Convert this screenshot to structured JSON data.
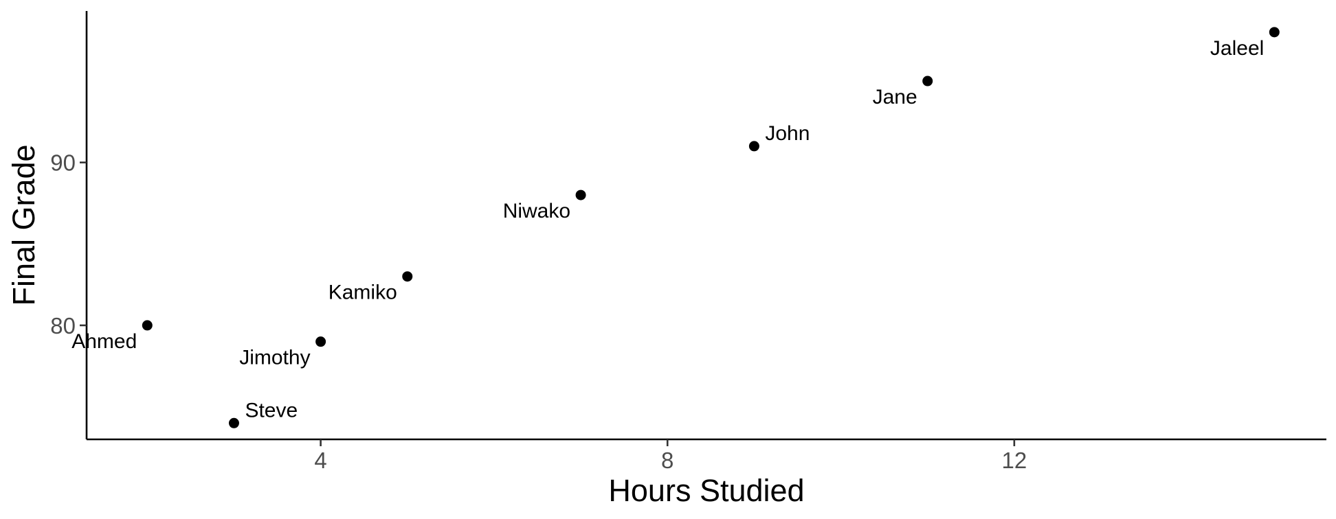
{
  "chart_data": {
    "type": "scatter",
    "title": "",
    "xlabel": "Hours Studied",
    "ylabel": "Final Grade",
    "xlim": [
      1.3,
      15.6
    ],
    "ylim": [
      73.0,
      99.3
    ],
    "xticks": [
      4,
      8,
      12
    ],
    "yticks": [
      80,
      90
    ],
    "grid": false,
    "legend": "none",
    "colors": {
      "point": "#000000",
      "axis": "#000000",
      "tick_label": "#4d4d4d"
    },
    "points": [
      {
        "label": "Ahmed",
        "x": 2,
        "y": 80,
        "label_side": "below-left"
      },
      {
        "label": "Steve",
        "x": 3,
        "y": 74,
        "label_side": "above-right"
      },
      {
        "label": "Jimothy",
        "x": 4,
        "y": 79,
        "label_side": "below-left"
      },
      {
        "label": "Kamiko",
        "x": 5,
        "y": 83,
        "label_side": "below-left"
      },
      {
        "label": "Niwako",
        "x": 7,
        "y": 88,
        "label_side": "below-left"
      },
      {
        "label": "John",
        "x": 9,
        "y": 91,
        "label_side": "above-right"
      },
      {
        "label": "Jane",
        "x": 11,
        "y": 95,
        "label_side": "below-left"
      },
      {
        "label": "Jaleel",
        "x": 15,
        "y": 98,
        "label_side": "below-left"
      }
    ]
  }
}
